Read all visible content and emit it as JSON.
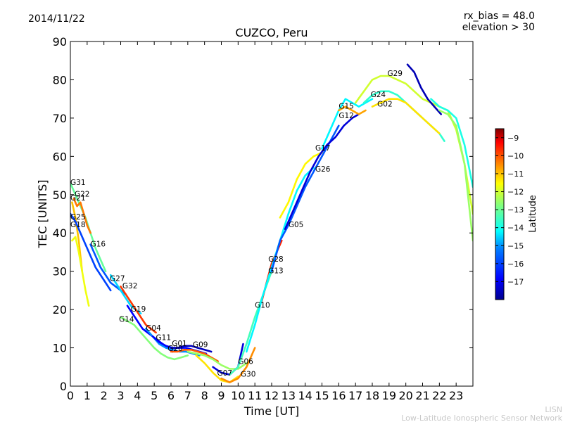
{
  "header": {
    "date": "2014/11/22",
    "rx_bias": "rx_bias = 48.0",
    "elevation": "elevation > 30"
  },
  "footer": {
    "line1": "LISN",
    "line2": "Low-Latitude Ionospheric Sensor Network"
  },
  "colorbar": {
    "label": "Latitude",
    "ticks": [
      "−9",
      "−10",
      "−11",
      "−12",
      "−13",
      "−14",
      "−15",
      "−16",
      "−17"
    ],
    "tick_values": [
      -9,
      -10,
      -11,
      -12,
      -13,
      -14,
      -15,
      -16,
      -17
    ],
    "range": [
      -18,
      -8.5
    ],
    "colormap": [
      "#00008f",
      "#0000ff",
      "#0080ff",
      "#00ffff",
      "#80ff80",
      "#ffff00",
      "#ff8000",
      "#ff0000",
      "#800000"
    ]
  },
  "chart_data": {
    "type": "line",
    "title": "CUZCO, Peru",
    "xlabel": "Time [UT]",
    "ylabel": "TEC [UNITS]",
    "xlim": [
      0,
      24
    ],
    "ylim": [
      0,
      90
    ],
    "xticks": [
      "0",
      "1",
      "2",
      "3",
      "4",
      "5",
      "6",
      "7",
      "8",
      "9",
      "10",
      "11",
      "12",
      "13",
      "14",
      "15",
      "16",
      "17",
      "18",
      "19",
      "20",
      "21",
      "22",
      "23"
    ],
    "xtick_values": [
      0,
      1,
      2,
      3,
      4,
      5,
      6,
      7,
      8,
      9,
      10,
      11,
      12,
      13,
      14,
      15,
      16,
      17,
      18,
      19,
      20,
      21,
      22,
      23
    ],
    "yticks": [
      "0",
      "10",
      "20",
      "30",
      "40",
      "50",
      "60",
      "70",
      "80",
      "90"
    ],
    "ytick_values": [
      0,
      10,
      20,
      30,
      40,
      50,
      60,
      70,
      80,
      90
    ],
    "grid": false,
    "series": [
      {
        "name": "G31",
        "lat": -13.5,
        "x": [
          0.0,
          0.3,
          0.6,
          0.9,
          1.2,
          1.5,
          1.8,
          2.1
        ],
        "y": [
          53,
          50,
          47,
          44,
          40,
          36,
          33,
          30
        ]
      },
      {
        "name": "G22",
        "lat": -10.8,
        "x": [
          0.2,
          0.4,
          0.6,
          0.8,
          1.0,
          1.2
        ],
        "y": [
          49,
          47,
          48,
          45,
          42,
          40
        ]
      },
      {
        "name": "G21",
        "lat": -11.5,
        "x": [
          0.1,
          0.3,
          0.5,
          0.7
        ],
        "y": [
          48,
          44,
          38,
          30
        ]
      },
      {
        "name": "G25",
        "lat": -16.2,
        "x": [
          0.0,
          0.3,
          0.6,
          0.9,
          1.2,
          1.5,
          1.8,
          2.1,
          2.4
        ],
        "y": [
          45,
          43,
          40,
          37,
          34,
          31,
          29,
          27,
          25
        ]
      },
      {
        "name": "G18",
        "lat": -12.2,
        "x": [
          0.1,
          0.3,
          0.5,
          0.7,
          0.9,
          1.1
        ],
        "y": [
          38,
          39,
          35,
          30,
          25,
          21
        ]
      },
      {
        "name": "G16",
        "lat": -16.0,
        "x": [
          1.2,
          1.5,
          1.8,
          2.1,
          2.4,
          2.7,
          3.0,
          3.3
        ],
        "y": [
          37,
          34,
          31,
          29,
          27,
          26,
          25,
          24
        ]
      },
      {
        "name": "G27",
        "lat": -14.8,
        "x": [
          2.4,
          2.7,
          3.0,
          3.3,
          3.6,
          3.9,
          4.2
        ],
        "y": [
          29,
          27,
          25,
          23,
          21,
          20,
          19
        ]
      },
      {
        "name": "G32",
        "lat": -10.2,
        "x": [
          3.0,
          3.3,
          3.6,
          3.9,
          4.2,
          4.5,
          4.8,
          5.1
        ],
        "y": [
          26,
          24,
          22,
          20,
          18,
          16,
          15,
          14
        ]
      },
      {
        "name": "G19",
        "lat": -16.8,
        "x": [
          3.4,
          3.7,
          4.0,
          4.3,
          4.6,
          4.9,
          5.2,
          5.5,
          5.8,
          6.1
        ],
        "y": [
          21,
          19,
          17,
          15,
          14,
          13,
          12,
          11,
          10,
          9
        ]
      },
      {
        "name": "G14",
        "lat": -13.2,
        "x": [
          3.0,
          3.4,
          3.8,
          4.2,
          4.6,
          5.0,
          5.4,
          5.8,
          6.2,
          6.6,
          7.0
        ],
        "y": [
          18,
          17,
          16,
          14,
          12,
          10,
          8.5,
          7.5,
          7,
          7.5,
          8
        ]
      },
      {
        "name": "G04",
        "lat": -15.5,
        "x": [
          4.5,
          4.9,
          5.3,
          5.7,
          6.1,
          6.5,
          6.9,
          7.3,
          7.7
        ],
        "y": [
          15,
          13,
          11,
          10,
          9.5,
          9,
          9,
          8.5,
          8
        ]
      },
      {
        "name": "G11",
        "lat": -16.8,
        "x": [
          4.9,
          5.3,
          5.7,
          6.1,
          6.5,
          6.9,
          7.3,
          7.7,
          8.1
        ],
        "y": [
          13,
          11.5,
          10.5,
          10,
          10,
          10,
          9.5,
          9,
          8.5
        ]
      },
      {
        "name": "G01",
        "lat": -17.5,
        "x": [
          6.0,
          6.4,
          6.8,
          7.2,
          7.6,
          8.0,
          8.4
        ],
        "y": [
          10,
          10,
          10.5,
          10.5,
          10,
          9.5,
          9
        ]
      },
      {
        "name": "G20",
        "lat": -10.5,
        "x": [
          6.0,
          6.4,
          6.8,
          7.2,
          7.6,
          8.0,
          8.4,
          8.8
        ],
        "y": [
          9,
          9,
          9.5,
          9.5,
          9,
          8.5,
          7.5,
          6.5
        ]
      },
      {
        "name": "G09",
        "lat": -13.0,
        "x": [
          7.0,
          7.5,
          8.0,
          8.5,
          9.0,
          9.5,
          10.0,
          10.5
        ],
        "y": [
          9,
          8.5,
          8,
          7,
          5.5,
          4.5,
          4.5,
          6
        ]
      },
      {
        "name": "G07",
        "lat": -11.8,
        "x": [
          7.5,
          8.0,
          8.5,
          9.0,
          9.5,
          10.0
        ],
        "y": [
          8,
          6,
          3.5,
          1.5,
          1,
          2.5
        ]
      },
      {
        "name": "G06",
        "lat": -17.2,
        "x": [
          8.5,
          9.0,
          9.5,
          10.0,
          10.3
        ],
        "y": [
          5,
          3.5,
          3,
          5,
          11
        ]
      },
      {
        "name": "G30",
        "lat": -11.0,
        "x": [
          9.0,
          9.5,
          10.0,
          10.5,
          11.0
        ],
        "y": [
          2,
          1,
          2,
          5,
          10
        ]
      },
      {
        "name": "G10",
        "lat": -13.8,
        "x": [
          9.5,
          10.0,
          10.5,
          11.0,
          11.5,
          12.0
        ],
        "y": [
          3,
          5,
          11,
          18,
          24,
          30
        ]
      },
      {
        "name": "G28",
        "lat": -10.0,
        "x": [
          11.4,
          11.7,
          12.0,
          12.3,
          12.6
        ],
        "y": [
          22,
          27,
          32,
          35,
          38
        ]
      },
      {
        "name": "G13",
        "lat": -14.5,
        "x": [
          10.5,
          11.0,
          11.5,
          12.0,
          12.5,
          13.0,
          13.5,
          14.0,
          14.5
        ],
        "y": [
          9,
          16,
          24,
          31,
          38,
          45,
          51,
          55,
          57
        ]
      },
      {
        "name": "G05",
        "lat": -16.0,
        "x": [
          12.0,
          12.5,
          13.0,
          13.5,
          14.0,
          14.5,
          15.0,
          15.5,
          16.0
        ],
        "y": [
          30,
          38,
          42,
          47,
          52,
          56,
          60,
          64,
          68
        ]
      },
      {
        "name": "G17",
        "lat": -12.0,
        "x": [
          12.5,
          13.0,
          13.5,
          14.0,
          14.5,
          15.0
        ],
        "y": [
          44,
          48,
          54,
          58,
          60,
          61
        ]
      },
      {
        "name": "G26",
        "lat": -17.2,
        "x": [
          12.8,
          13.3,
          13.8,
          14.3,
          14.8,
          15.3,
          15.8,
          16.3,
          16.8,
          17.2
        ],
        "y": [
          41,
          46,
          51,
          56,
          60,
          63,
          65,
          68,
          70,
          71
        ]
      },
      {
        "name": "G15",
        "lat": -14.5,
        "x": [
          15.0,
          15.5,
          16.0,
          16.4,
          16.8,
          17.2,
          17.6,
          18.0
        ],
        "y": [
          62,
          67,
          72,
          75,
          74,
          73,
          74,
          75
        ]
      },
      {
        "name": "G12",
        "lat": -11.2,
        "x": [
          16.0,
          16.4,
          16.8,
          17.2,
          17.6
        ],
        "y": [
          72,
          73,
          72,
          71,
          72
        ]
      },
      {
        "name": "G24",
        "lat": -14.0,
        "x": [
          17.5,
          18.0,
          18.5,
          19.0,
          19.5,
          20.0,
          20.5,
          21.0,
          21.5,
          22.0,
          22.3
        ],
        "y": [
          74,
          76,
          77,
          77,
          76,
          74,
          72,
          70,
          68,
          66,
          64
        ]
      },
      {
        "name": "G02",
        "lat": -11.8,
        "x": [
          18.0,
          18.5,
          19.0,
          19.5,
          20.0,
          20.5,
          21.0,
          21.5,
          22.0
        ],
        "y": [
          73,
          74,
          75,
          75,
          74,
          72,
          70,
          68,
          66
        ]
      },
      {
        "name": "G29",
        "lat": -12.5,
        "x": [
          17.0,
          17.5,
          18.0,
          18.5,
          19.0,
          19.5,
          20.0,
          20.5,
          21.0,
          21.5,
          22.0,
          22.5,
          23.0,
          23.5,
          24.0
        ],
        "y": [
          74,
          77,
          80,
          81,
          81,
          80,
          79,
          77,
          75,
          74,
          73,
          72,
          67,
          58,
          45
        ]
      },
      {
        "name": "",
        "lat": -17.6,
        "x": [
          20.1,
          20.5,
          20.9,
          21.3,
          21.7,
          22.1
        ],
        "y": [
          84,
          82,
          78,
          75,
          73,
          71
        ]
      },
      {
        "name": "",
        "lat": -14.2,
        "x": [
          21.5,
          22.0,
          22.5,
          23.0,
          23.5,
          24.0
        ],
        "y": [
          75,
          73,
          72,
          70,
          63,
          52
        ]
      },
      {
        "name": "",
        "lat": -13.0,
        "x": [
          22.0,
          22.5,
          23.0,
          23.5,
          24.0
        ],
        "y": [
          72,
          71,
          68,
          58,
          38
        ]
      }
    ],
    "labels": [
      {
        "text": "G31",
        "x": 0.0,
        "y": 52.5
      },
      {
        "text": "G22",
        "x": 0.25,
        "y": 49.5
      },
      {
        "text": "G21",
        "x": 0.0,
        "y": 48.5
      },
      {
        "text": "G25",
        "x": 0.0,
        "y": 43.5
      },
      {
        "text": "G18",
        "x": 0.0,
        "y": 41.5
      },
      {
        "text": "G16",
        "x": 1.2,
        "y": 36.5
      },
      {
        "text": "G28",
        "x": 11.8,
        "y": 32.5
      },
      {
        "text": "G13",
        "x": 11.8,
        "y": 29.5
      },
      {
        "text": "G27",
        "x": 2.35,
        "y": 27.5
      },
      {
        "text": "G32",
        "x": 3.1,
        "y": 25.5
      },
      {
        "text": "G10",
        "x": 11.0,
        "y": 20.5
      },
      {
        "text": "G19",
        "x": 3.6,
        "y": 19.5
      },
      {
        "text": "G14",
        "x": 2.9,
        "y": 16.8
      },
      {
        "text": "G04",
        "x": 4.5,
        "y": 14.5
      },
      {
        "text": "G11",
        "x": 5.1,
        "y": 12.0
      },
      {
        "text": "G01",
        "x": 6.05,
        "y": 10.5
      },
      {
        "text": "G09",
        "x": 7.3,
        "y": 10.2
      },
      {
        "text": "G20",
        "x": 5.8,
        "y": 9.2
      },
      {
        "text": "G06",
        "x": 10.0,
        "y": 5.8
      },
      {
        "text": "G07",
        "x": 8.75,
        "y": 2.8
      },
      {
        "text": "G30",
        "x": 10.15,
        "y": 2.5
      },
      {
        "text": "G05",
        "x": 13.0,
        "y": 41.5
      },
      {
        "text": "G17",
        "x": 14.6,
        "y": 61.5
      },
      {
        "text": "G26",
        "x": 14.6,
        "y": 56.0
      },
      {
        "text": "G29",
        "x": 18.9,
        "y": 81.0
      },
      {
        "text": "G24",
        "x": 17.9,
        "y": 75.5
      },
      {
        "text": "G02",
        "x": 18.3,
        "y": 73.0
      },
      {
        "text": "G15",
        "x": 16.0,
        "y": 72.5
      },
      {
        "text": "G12",
        "x": 16.0,
        "y": 70.0
      }
    ]
  }
}
